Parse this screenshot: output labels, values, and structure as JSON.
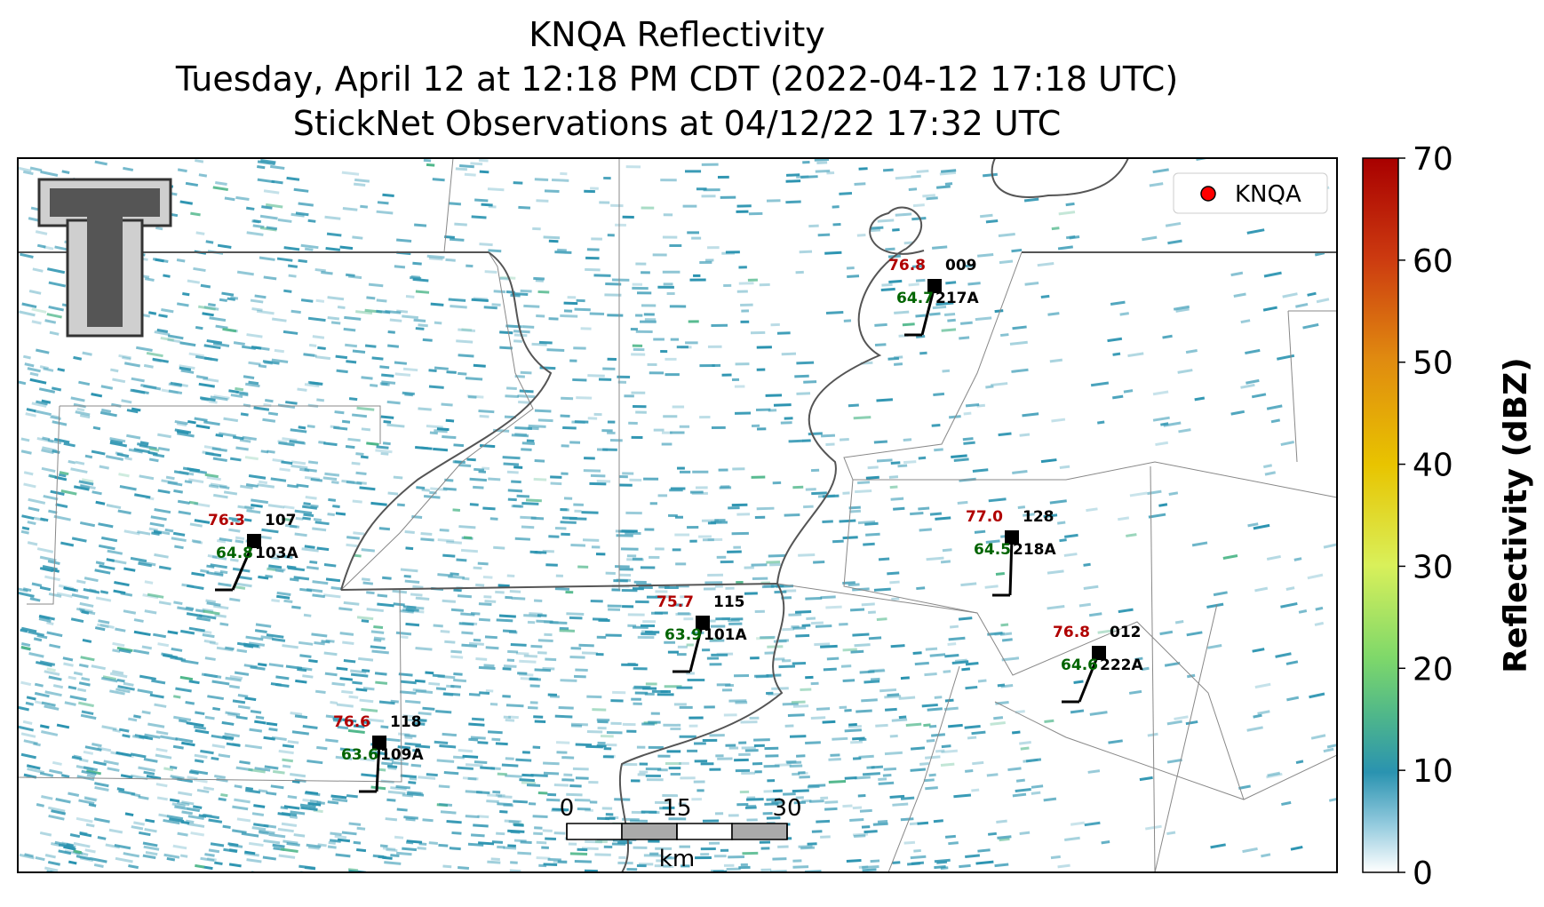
{
  "title": [
    "KNQA Reflectivity",
    "Tuesday, April 12 at 12:18 PM CDT (2022-04-12 17:18 UTC)",
    "StickNet Observations at 04/12/22 17:32 UTC"
  ],
  "legend": {
    "label": "KNQA",
    "color": "#ff0000"
  },
  "colorbar": {
    "label": "Reflectivity (dBZ)",
    "lim": [
      0,
      70
    ],
    "ticks": [
      0,
      10,
      20,
      30,
      40,
      50,
      60,
      70
    ]
  },
  "scale_bar": {
    "ticks": [
      0,
      15,
      30
    ],
    "unit": "km"
  },
  "stations": [
    {
      "temperature": "76.3",
      "dewpoint": "64.8",
      "id": "107",
      "probe": "103A"
    },
    {
      "temperature": "75.7",
      "dewpoint": "63.9",
      "id": "115",
      "probe": "101A"
    },
    {
      "temperature": "76.6",
      "dewpoint": "63.6",
      "id": "118",
      "probe": "109A"
    },
    {
      "temperature": "76.8",
      "dewpoint": "64.7",
      "id": "009",
      "probe": "217A"
    },
    {
      "temperature": "77.0",
      "dewpoint": "64.5",
      "id": "128",
      "probe": "218A"
    },
    {
      "temperature": "76.8",
      "dewpoint": "64.6",
      "id": "012",
      "probe": "222A"
    }
  ]
}
